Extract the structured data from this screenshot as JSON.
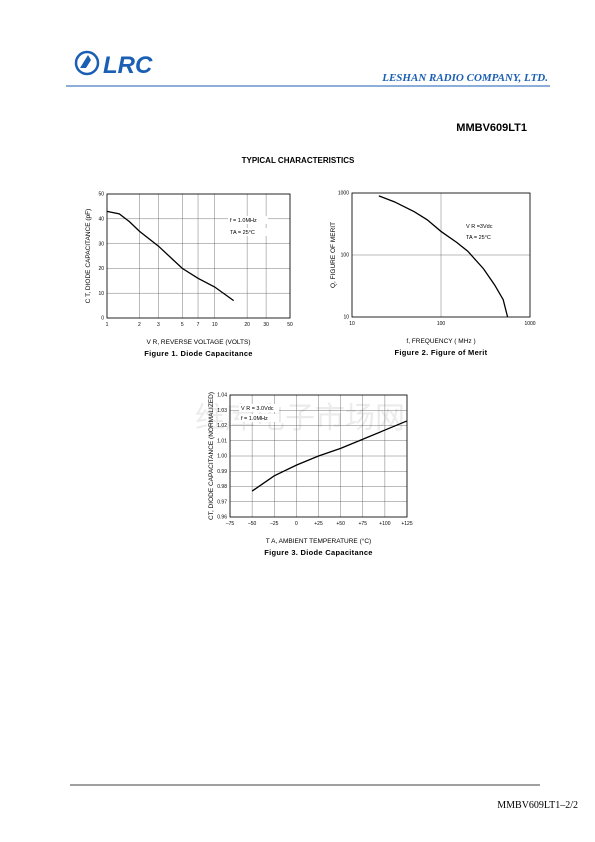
{
  "header": {
    "logo": "LRC",
    "company": "LESHAN RADIO COMPANY, LTD."
  },
  "part_number": "MMBV609LT1",
  "section_title": "TYPICAL CHARACTERISTICS",
  "watermark": "维库电子市场网",
  "footer": "MMBV609LT1–2/2",
  "chart_data": [
    {
      "type": "line",
      "caption": "Figure 1. Diode Capacitance",
      "x_label": "V R, REVERSE VOLTAGE (VOLTS)",
      "y_label": "C T, DIODE CAPACITANCE (pF)",
      "annotations": [
        "f = 1.0MHz",
        "TA = 25°C"
      ],
      "x": [
        1,
        1.3,
        1.6,
        2,
        3,
        5,
        7,
        10,
        15
      ],
      "values": [
        43,
        42,
        39,
        35,
        29,
        20,
        16,
        12.5,
        7
      ],
      "color": "#000000",
      "xlog": true,
      "ylog": false,
      "grid": true,
      "xlim": [
        1,
        50
      ],
      "ylim": [
        0,
        50
      ],
      "xticks": [
        1,
        2,
        3,
        5,
        7,
        10,
        20,
        30,
        50
      ],
      "yticks": [
        0,
        10,
        20,
        30,
        40,
        50
      ]
    },
    {
      "type": "line",
      "caption": "Figure 2. Figure of Merit",
      "x_label": "f, FREQUENCY ( MHz )",
      "y_label": "Q, FIGURE OF MERIT",
      "annotations": [
        "V R =3Vdc",
        "TA = 25°C"
      ],
      "x": [
        20,
        30,
        50,
        70,
        100,
        150,
        200,
        300,
        400,
        500,
        560
      ],
      "values": [
        900,
        720,
        500,
        370,
        240,
        160,
        115,
        60,
        33,
        19,
        10
      ],
      "color": "#000000",
      "xlog": true,
      "ylog": true,
      "grid": true,
      "xlim": [
        10,
        1000
      ],
      "ylim": [
        10,
        1000
      ],
      "xticks": [
        10,
        100,
        1000
      ],
      "yticks": [
        10,
        100,
        1000
      ]
    },
    {
      "type": "line",
      "caption": "Figure 3. Diode Capacitance",
      "x_label": "T A, AMBIENT TEMPERATURE (°C)",
      "y_label": "CT, DIODE CAPACITANCE (NORMALIZED)",
      "annotations": [
        "V R = 3.0Vdc",
        "f = 1.0MHz"
      ],
      "x": [
        -50,
        -25,
        0,
        25,
        50,
        75,
        100,
        125
      ],
      "values": [
        0.977,
        0.987,
        0.994,
        1.0,
        1.005,
        1.011,
        1.017,
        1.023
      ],
      "color": "#000000",
      "xlog": false,
      "ylog": false,
      "grid": true,
      "xlim": [
        -75,
        125
      ],
      "ylim": [
        0.96,
        1.04
      ],
      "xticks": [
        {
          "value": -75,
          "label": "–75"
        },
        {
          "value": -50,
          "label": "–50"
        },
        {
          "value": -25,
          "label": "–25"
        },
        0,
        {
          "value": 25,
          "label": "+25"
        },
        {
          "value": 50,
          "label": "+50"
        },
        {
          "value": 75,
          "label": "+75"
        },
        {
          "value": 100,
          "label": "+100"
        },
        {
          "value": 125,
          "label": "+125"
        }
      ],
      "yticks": [
        0.96,
        0.97,
        0.98,
        0.99,
        {
          "value": 1,
          "label": "1.00"
        },
        1.01,
        1.02,
        1.03,
        1.04
      ]
    }
  ]
}
